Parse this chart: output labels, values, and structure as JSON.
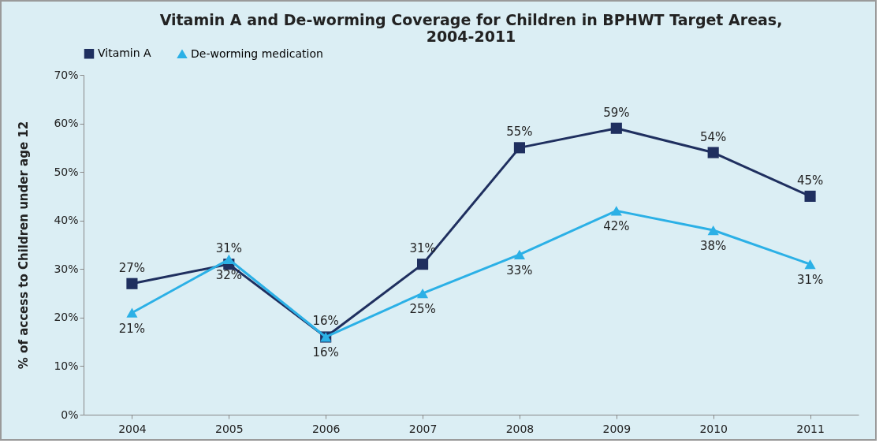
{
  "chart_data": {
    "type": "line",
    "title": "Vitamin A and De-worming Coverage for Children in BPHWT Target Areas, 2004-2011",
    "ylabel": "% of access to Children under age 12",
    "categories": [
      "2004",
      "2005",
      "2006",
      "2007",
      "2008",
      "2009",
      "2010",
      "2011"
    ],
    "series": [
      {
        "name": "Vitamin A",
        "color": "#1f2f5f",
        "marker": "square",
        "values": [
          27,
          31,
          16,
          31,
          55,
          59,
          54,
          45
        ],
        "value_labels": [
          "27%",
          "31%",
          "16%",
          "31%",
          "55%",
          "59%",
          "54%",
          "45%"
        ]
      },
      {
        "name": "De-worming medication",
        "color": "#2bb0e6",
        "marker": "triangle",
        "values": [
          21,
          32,
          16,
          25,
          33,
          42,
          38,
          31
        ],
        "value_labels": [
          "21%",
          "32%",
          "16%",
          "25%",
          "33%",
          "42%",
          "38%",
          "31%"
        ]
      }
    ],
    "ylim": [
      0,
      70
    ],
    "yticks": [
      {
        "value": 0,
        "label": "0%"
      },
      {
        "value": 10,
        "label": "10%"
      },
      {
        "value": 20,
        "label": "20%"
      },
      {
        "value": 30,
        "label": "30%"
      },
      {
        "value": 40,
        "label": "40%"
      },
      {
        "value": 50,
        "label": "50%"
      },
      {
        "value": 60,
        "label": "60%"
      },
      {
        "value": 70,
        "label": "70%"
      }
    ],
    "grid": false,
    "legend": "top",
    "line_style": "solid"
  }
}
